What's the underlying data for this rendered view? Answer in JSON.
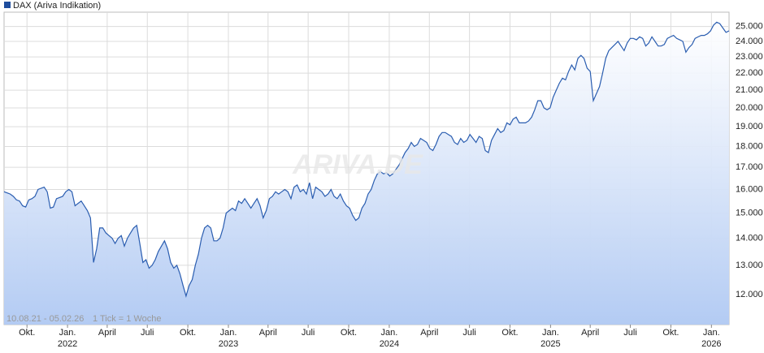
{
  "chart_data": {
    "type": "line",
    "log_scale": true,
    "grid": true,
    "legend": "DAX (Ariva Indikation)",
    "watermark": "ARIVA.DE",
    "footnote_range": "10.08.21 - 05.02.26",
    "footnote_tick": "1 Tick = 1 Woche",
    "series": [
      {
        "name": "DAX (Ariva Indikation)",
        "color": "#2a5db0",
        "values": [
          15900,
          15850,
          15800,
          15700,
          15550,
          15500,
          15300,
          15250,
          15550,
          15600,
          15700,
          16000,
          16050,
          16100,
          15900,
          15200,
          15250,
          15600,
          15650,
          15700,
          15900,
          16000,
          15900,
          15300,
          15400,
          15500,
          15300,
          15100,
          14800,
          13100,
          13600,
          14400,
          14400,
          14200,
          14100,
          14000,
          13800,
          14000,
          14100,
          13700,
          14000,
          14200,
          14400,
          14500,
          13800,
          13100,
          13200,
          12900,
          13000,
          13200,
          13500,
          13700,
          13900,
          13600,
          13100,
          12900,
          13000,
          12700,
          12300,
          11950,
          12300,
          12500,
          13000,
          13400,
          14000,
          14400,
          14500,
          14400,
          13900,
          13900,
          14000,
          14400,
          15000,
          15100,
          15200,
          15100,
          15500,
          15400,
          15600,
          15400,
          15200,
          15400,
          15600,
          15300,
          14800,
          15100,
          15600,
          15700,
          15900,
          15800,
          15900,
          16000,
          15900,
          15600,
          16100,
          16200,
          15900,
          16000,
          15800,
          16300,
          15600,
          16100,
          16000,
          15900,
          15700,
          15800,
          16000,
          15700,
          15600,
          15800,
          15500,
          15300,
          15200,
          14900,
          14700,
          14800,
          15200,
          15400,
          15800,
          16000,
          16400,
          16700,
          16800,
          16700,
          16750,
          16600,
          16700,
          16900,
          17100,
          17400,
          17700,
          17900,
          18200,
          18000,
          18100,
          18400,
          18300,
          18200,
          17900,
          17800,
          18100,
          18500,
          18700,
          18700,
          18600,
          18500,
          18200,
          18100,
          18400,
          18200,
          18300,
          18600,
          18400,
          18200,
          18500,
          18400,
          17800,
          17700,
          18300,
          18600,
          18900,
          18700,
          18800,
          19200,
          19100,
          19400,
          19500,
          19200,
          19200,
          19200,
          19300,
          19500,
          19900,
          20400,
          20400,
          20000,
          19900,
          20000,
          20600,
          21000,
          21400,
          21700,
          21600,
          22100,
          22500,
          22200,
          22900,
          23100,
          22900,
          22300,
          22100,
          20400,
          20800,
          21200,
          22000,
          22900,
          23400,
          23600,
          23800,
          24000,
          23700,
          23400,
          23900,
          24200,
          24200,
          24100,
          24300,
          24200,
          23700,
          23900,
          24300,
          24000,
          23700,
          23700,
          23800,
          24200,
          24300,
          24400,
          24200,
          24100,
          24000,
          23300,
          23600,
          23800,
          24200,
          24300,
          24400,
          24400,
          24500,
          24700,
          25100,
          25300,
          25200,
          24900,
          24600,
          24700
        ]
      }
    ],
    "xlim": [
      0,
      235
    ],
    "xticks": [
      {
        "value": 7.43,
        "label": "Okt."
      },
      {
        "value": 20.57,
        "label": "Jan.",
        "year": "2022"
      },
      {
        "value": 33.43,
        "label": "April"
      },
      {
        "value": 46.43,
        "label": "Juli"
      },
      {
        "value": 59.57,
        "label": "Okt."
      },
      {
        "value": 72.71,
        "label": "Jan.",
        "year": "2023"
      },
      {
        "value": 85.57,
        "label": "April"
      },
      {
        "value": 98.57,
        "label": "Juli"
      },
      {
        "value": 111.71,
        "label": "Okt."
      },
      {
        "value": 124.86,
        "label": "Jan.",
        "year": "2024"
      },
      {
        "value": 137.86,
        "label": "April"
      },
      {
        "value": 150.86,
        "label": "Juli"
      },
      {
        "value": 164,
        "label": "Okt."
      },
      {
        "value": 177.14,
        "label": "Jan.",
        "year": "2025"
      },
      {
        "value": 190,
        "label": "April"
      },
      {
        "value": 203,
        "label": "Juli"
      },
      {
        "value": 216.14,
        "label": "Okt."
      },
      {
        "value": 229.29,
        "label": "Jan.",
        "year": "2026"
      }
    ],
    "ylim": [
      11050,
      26000
    ],
    "yticks": [
      {
        "value": 12000,
        "label": "12.000"
      },
      {
        "value": 13000,
        "label": "13.000"
      },
      {
        "value": 14000,
        "label": "14.000"
      },
      {
        "value": 15000,
        "label": "15.000"
      },
      {
        "value": 16000,
        "label": "16.000"
      },
      {
        "value": 17000,
        "label": "17.000"
      },
      {
        "value": 18000,
        "label": "18.000"
      },
      {
        "value": 19000,
        "label": "19.000"
      },
      {
        "value": 20000,
        "label": "20.000"
      },
      {
        "value": 21000,
        "label": "21.000"
      },
      {
        "value": 22000,
        "label": "22.000"
      },
      {
        "value": 23000,
        "label": "23.000"
      },
      {
        "value": 24000,
        "label": "24.000"
      },
      {
        "value": 25000,
        "label": "25.000"
      }
    ]
  }
}
